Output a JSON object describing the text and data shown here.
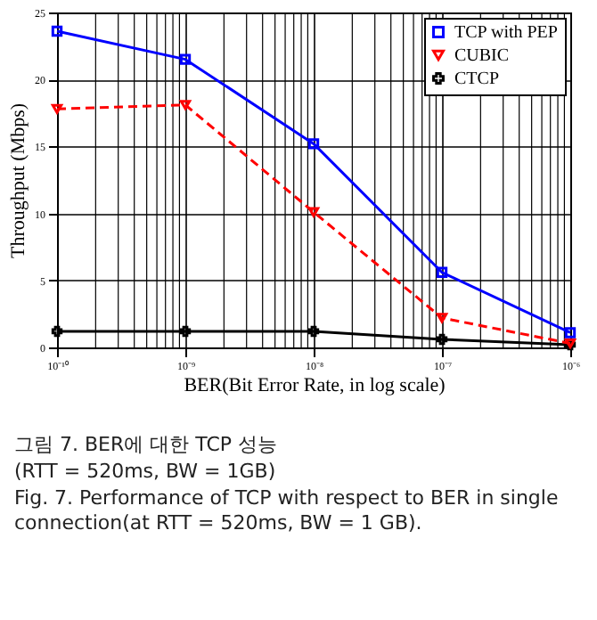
{
  "chart_data": {
    "type": "line",
    "xlabel": "BER(Bit Error Rate, in log scale)",
    "ylabel": "Throughput (Mbps)",
    "x": [
      1e-10,
      1e-09,
      1e-08,
      1e-07,
      1e-06
    ],
    "series": [
      {
        "name": "TCP with PEP",
        "color": "#0000ff",
        "marker": "square",
        "line_style": "solid",
        "values": [
          23.6,
          21.5,
          15.2,
          5.6,
          1.1
        ]
      },
      {
        "name": "CUBIC",
        "color": "#ff0000",
        "marker": "triangle",
        "line_style": "dashed",
        "values": [
          17.8,
          18.1,
          10.1,
          2.2,
          0.3
        ]
      },
      {
        "name": "CTCP",
        "color": "#000000",
        "marker": "cross",
        "line_style": "solid",
        "values": [
          1.2,
          1.2,
          1.2,
          0.6,
          0.2
        ]
      }
    ],
    "log": "x",
    "grid": true,
    "legend": "top right",
    "xlim": [
      1e-10,
      1e-06
    ],
    "ylim": [
      0,
      25
    ],
    "xticks": [
      {
        "value": 1e-10,
        "label": "10⁻¹⁰"
      },
      {
        "value": 1e-09,
        "label": "10⁻⁹"
      },
      {
        "value": 1e-08,
        "label": "10⁻⁸"
      },
      {
        "value": 1e-07,
        "label": "10⁻⁷"
      },
      {
        "value": 1e-06,
        "label": "10⁻⁶"
      }
    ],
    "yticks": [
      0,
      5,
      10,
      15,
      20,
      25
    ],
    "annotations": [
      "그림 7. BER에 대한 TCP 성능",
      "(RTT = 520ms, BW = 1GB)",
      "Fig. 7. Performance of TCP with respect to BER in single connection(at RTT = 520ms, BW = 1 GB)."
    ]
  }
}
